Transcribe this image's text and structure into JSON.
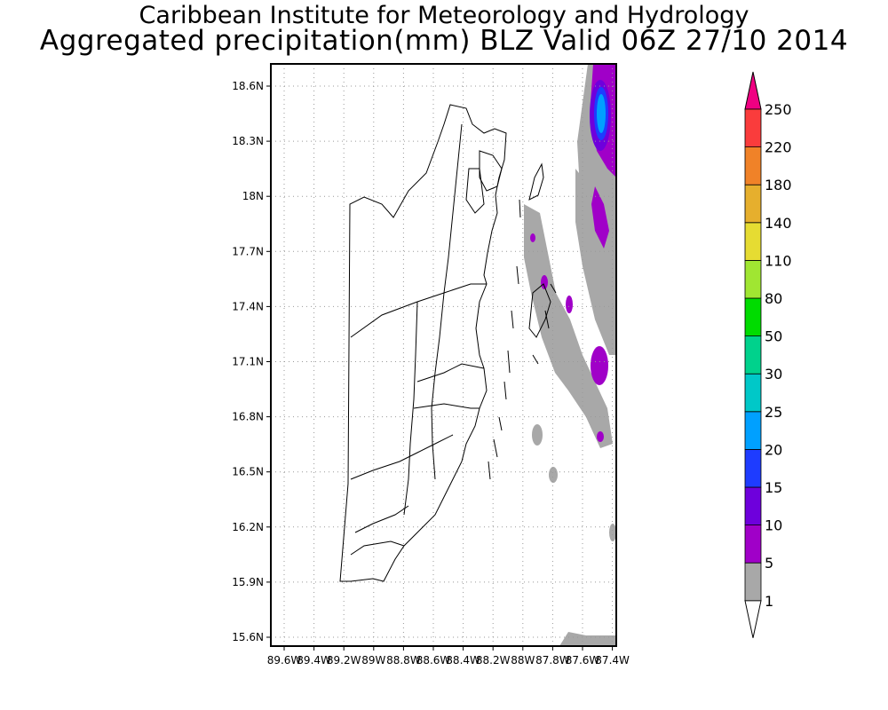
{
  "header": {
    "institute": "Caribbean Institute for Meteorology and Hydrology",
    "product": "Aggregated precipitation(mm) BLZ Valid 06Z 27/10 2014"
  },
  "map": {
    "lat_ticks": [
      "18.6N",
      "18.3N",
      "18N",
      "17.7N",
      "17.4N",
      "17.1N",
      "16.8N",
      "16.5N",
      "16.2N",
      "15.9N",
      "15.6N"
    ],
    "lon_ticks": [
      "89.6W",
      "89.4W",
      "89.2W",
      "89W",
      "88.8W",
      "88.6W",
      "88.4W",
      "88.2W",
      "88W",
      "87.8W",
      "87.6W",
      "87.4W"
    ],
    "grid": "dotted"
  },
  "colorbar": {
    "levels": [
      "1",
      "5",
      "10",
      "15",
      "20",
      "25",
      "30",
      "50",
      "80",
      "110",
      "140",
      "180",
      "220",
      "250"
    ],
    "colors": [
      "#ffffff",
      "#a8a8a8",
      "#a000c8",
      "#6e00dc",
      "#1e3cff",
      "#00a0ff",
      "#00c8c8",
      "#00d28c",
      "#00dc00",
      "#a0e632",
      "#e6dc32",
      "#e6af2d",
      "#f08228",
      "#fa3c3c",
      "#f00082"
    ]
  }
}
